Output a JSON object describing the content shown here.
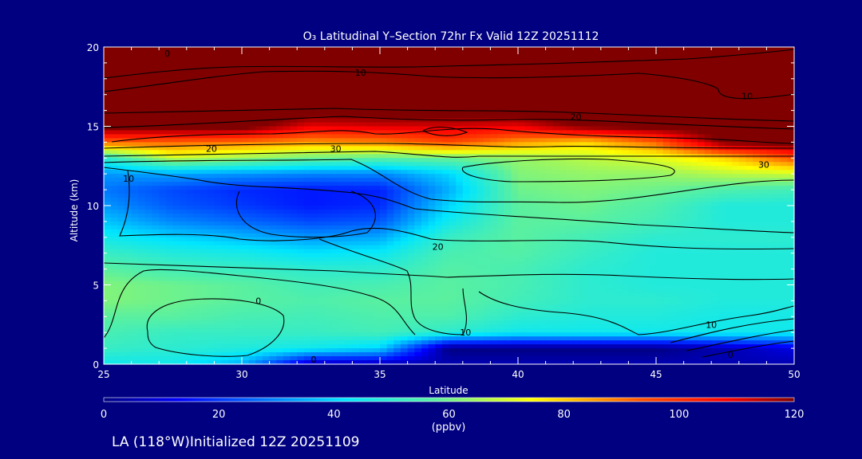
{
  "chart_data": {
    "type": "heatmap",
    "title": "O₃ Latitudinal Y–Section 72hr  Fx Valid 12Z 20251112",
    "xlabel": "Latitude",
    "ylabel": "Altitude (km)",
    "xlim": [
      25,
      50
    ],
    "ylim": [
      0,
      20
    ],
    "x_ticks": [
      25,
      30,
      35,
      40,
      45,
      50
    ],
    "y_ticks": [
      0,
      5,
      10,
      15,
      20
    ],
    "colorbar": {
      "min": 0,
      "max": 120,
      "ticks": [
        0,
        20,
        40,
        60,
        80,
        100,
        120
      ],
      "unit": "(ppbv)"
    },
    "footer": "LA (118°W)Initialized 12Z 20251109",
    "contour_labels": [
      {
        "text": "0",
        "lat": 27.3,
        "alt": 19.6
      },
      {
        "text": "10",
        "lat": 34.3,
        "alt": 18.4
      },
      {
        "text": "10",
        "lat": 48.3,
        "alt": 16.9
      },
      {
        "text": "20",
        "lat": 42.1,
        "alt": 15.6
      },
      {
        "text": "20",
        "lat": 28.9,
        "alt": 13.6
      },
      {
        "text": "30",
        "lat": 33.4,
        "alt": 13.6
      },
      {
        "text": "30",
        "lat": 48.9,
        "alt": 12.6
      },
      {
        "text": "10",
        "lat": 25.9,
        "alt": 11.7
      },
      {
        "text": "20",
        "lat": 37.1,
        "alt": 7.4
      },
      {
        "text": "0",
        "lat": 30.6,
        "alt": 4.0
      },
      {
        "text": "10",
        "lat": 38.1,
        "alt": 2.0
      },
      {
        "text": "10",
        "lat": 47.0,
        "alt": 2.5
      },
      {
        "text": "0",
        "lat": 32.6,
        "alt": 0.3
      },
      {
        "text": "0",
        "lat": 47.7,
        "alt": 0.6
      }
    ],
    "field": {
      "lats": [
        25,
        27.5,
        30,
        32.5,
        35,
        37.5,
        40,
        42.5,
        45,
        47.5,
        50
      ],
      "alts": [
        0,
        1,
        2,
        3,
        4,
        5,
        6,
        7,
        8,
        9,
        10,
        11,
        12,
        13,
        14,
        15,
        16,
        17,
        18,
        19,
        20
      ],
      "values": [
        [
          45,
          45,
          35,
          5,
          5,
          5,
          5,
          5,
          5,
          5,
          5
        ],
        [
          52,
          50,
          48,
          45,
          40,
          0,
          0,
          0,
          0,
          5,
          10
        ],
        [
          55,
          52,
          52,
          52,
          54,
          50,
          45,
          45,
          45,
          45,
          45
        ],
        [
          58,
          58,
          55,
          54,
          56,
          56,
          50,
          48,
          48,
          46,
          46
        ],
        [
          62,
          60,
          58,
          56,
          58,
          58,
          54,
          50,
          50,
          48,
          48
        ],
        [
          62,
          60,
          58,
          54,
          55,
          58,
          55,
          50,
          48,
          48,
          48
        ],
        [
          58,
          54,
          52,
          50,
          50,
          57,
          55,
          50,
          48,
          48,
          48
        ],
        [
          52,
          48,
          46,
          42,
          44,
          55,
          57,
          52,
          48,
          48,
          48
        ],
        [
          45,
          40,
          36,
          32,
          34,
          52,
          58,
          54,
          50,
          50,
          50
        ],
        [
          38,
          30,
          26,
          22,
          24,
          45,
          58,
          58,
          54,
          48,
          48
        ],
        [
          32,
          24,
          20,
          16,
          18,
          40,
          58,
          60,
          56,
          48,
          48
        ],
        [
          28,
          22,
          18,
          16,
          17,
          35,
          60,
          62,
          60,
          56,
          54
        ],
        [
          32,
          34,
          32,
          30,
          30,
          40,
          62,
          64,
          64,
          68,
          70
        ],
        [
          50,
          70,
          65,
          60,
          58,
          60,
          64,
          68,
          72,
          80,
          95
        ],
        [
          92,
          92,
          90,
          86,
          88,
          96,
          86,
          80,
          92,
          122,
          125
        ],
        [
          125,
          125,
          125,
          110,
          112,
          112,
          110,
          122,
          125,
          125,
          125
        ],
        [
          125,
          125,
          125,
          125,
          125,
          125,
          125,
          125,
          125,
          125,
          125
        ],
        [
          125,
          125,
          125,
          125,
          125,
          125,
          125,
          125,
          125,
          125,
          125
        ],
        [
          125,
          125,
          125,
          125,
          125,
          125,
          125,
          125,
          125,
          125,
          125
        ],
        [
          125,
          125,
          125,
          125,
          125,
          125,
          125,
          125,
          125,
          125,
          125
        ],
        [
          125,
          125,
          125,
          125,
          125,
          125,
          125,
          125,
          125,
          125,
          125
        ]
      ]
    }
  }
}
